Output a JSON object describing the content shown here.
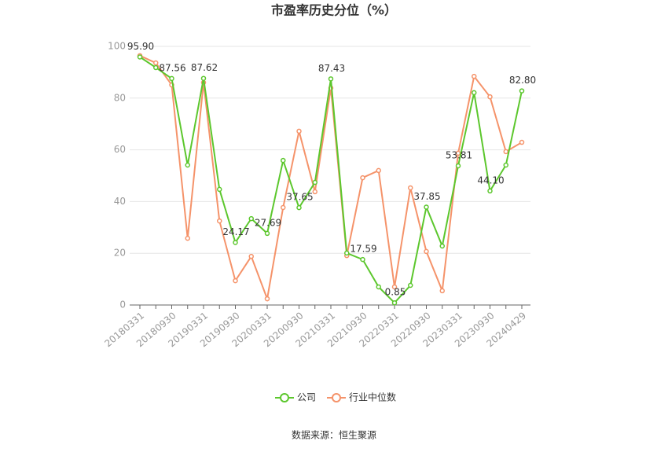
{
  "chart_data": {
    "type": "line",
    "title": "市盈率历史分位（%）",
    "source": "数据来源：恒生聚源",
    "categories": [
      "20180331",
      null,
      "20180930",
      null,
      "20190331",
      null,
      "20190930",
      null,
      "20200331",
      null,
      "20200930",
      null,
      "20210331",
      null,
      "20210930",
      null,
      "20220331",
      null,
      "20220930",
      null,
      "20230331",
      null,
      "20230930",
      null,
      "20240429"
    ],
    "series": [
      {
        "name": "公司",
        "color": "#5cc72d",
        "values": [
          95.9,
          91.8,
          87.56,
          54.1,
          87.62,
          44.7,
          24.17,
          33.4,
          27.69,
          55.9,
          37.65,
          47.4,
          87.43,
          20.1,
          17.59,
          7.0,
          0.85,
          7.6,
          37.85,
          22.8,
          53.81,
          82.1,
          44.1,
          54.1,
          82.8
        ],
        "value_labels": [
          "95.90",
          null,
          "87.56",
          null,
          "87.62",
          null,
          "24.17",
          null,
          "27.69",
          null,
          "37.65",
          null,
          "87.43",
          null,
          "17.59",
          null,
          "0.85",
          null,
          "37.85",
          null,
          "53.81",
          null,
          "44.10",
          null,
          "82.80"
        ]
      },
      {
        "name": "行业中位数",
        "color": "#f5936a",
        "values": [
          96.4,
          93.6,
          85.1,
          25.8,
          86.0,
          32.5,
          9.4,
          18.8,
          2.4,
          37.7,
          67.2,
          43.8,
          83.9,
          19.1,
          49.2,
          52.0,
          7.0,
          45.3,
          20.7,
          5.5,
          58.7,
          88.4,
          80.5,
          59.3,
          62.9
        ]
      }
    ],
    "ylim": [
      0,
      100
    ],
    "yticks": [
      0,
      20,
      40,
      60,
      80,
      100
    ],
    "grid": true,
    "legend": "bottom"
  }
}
